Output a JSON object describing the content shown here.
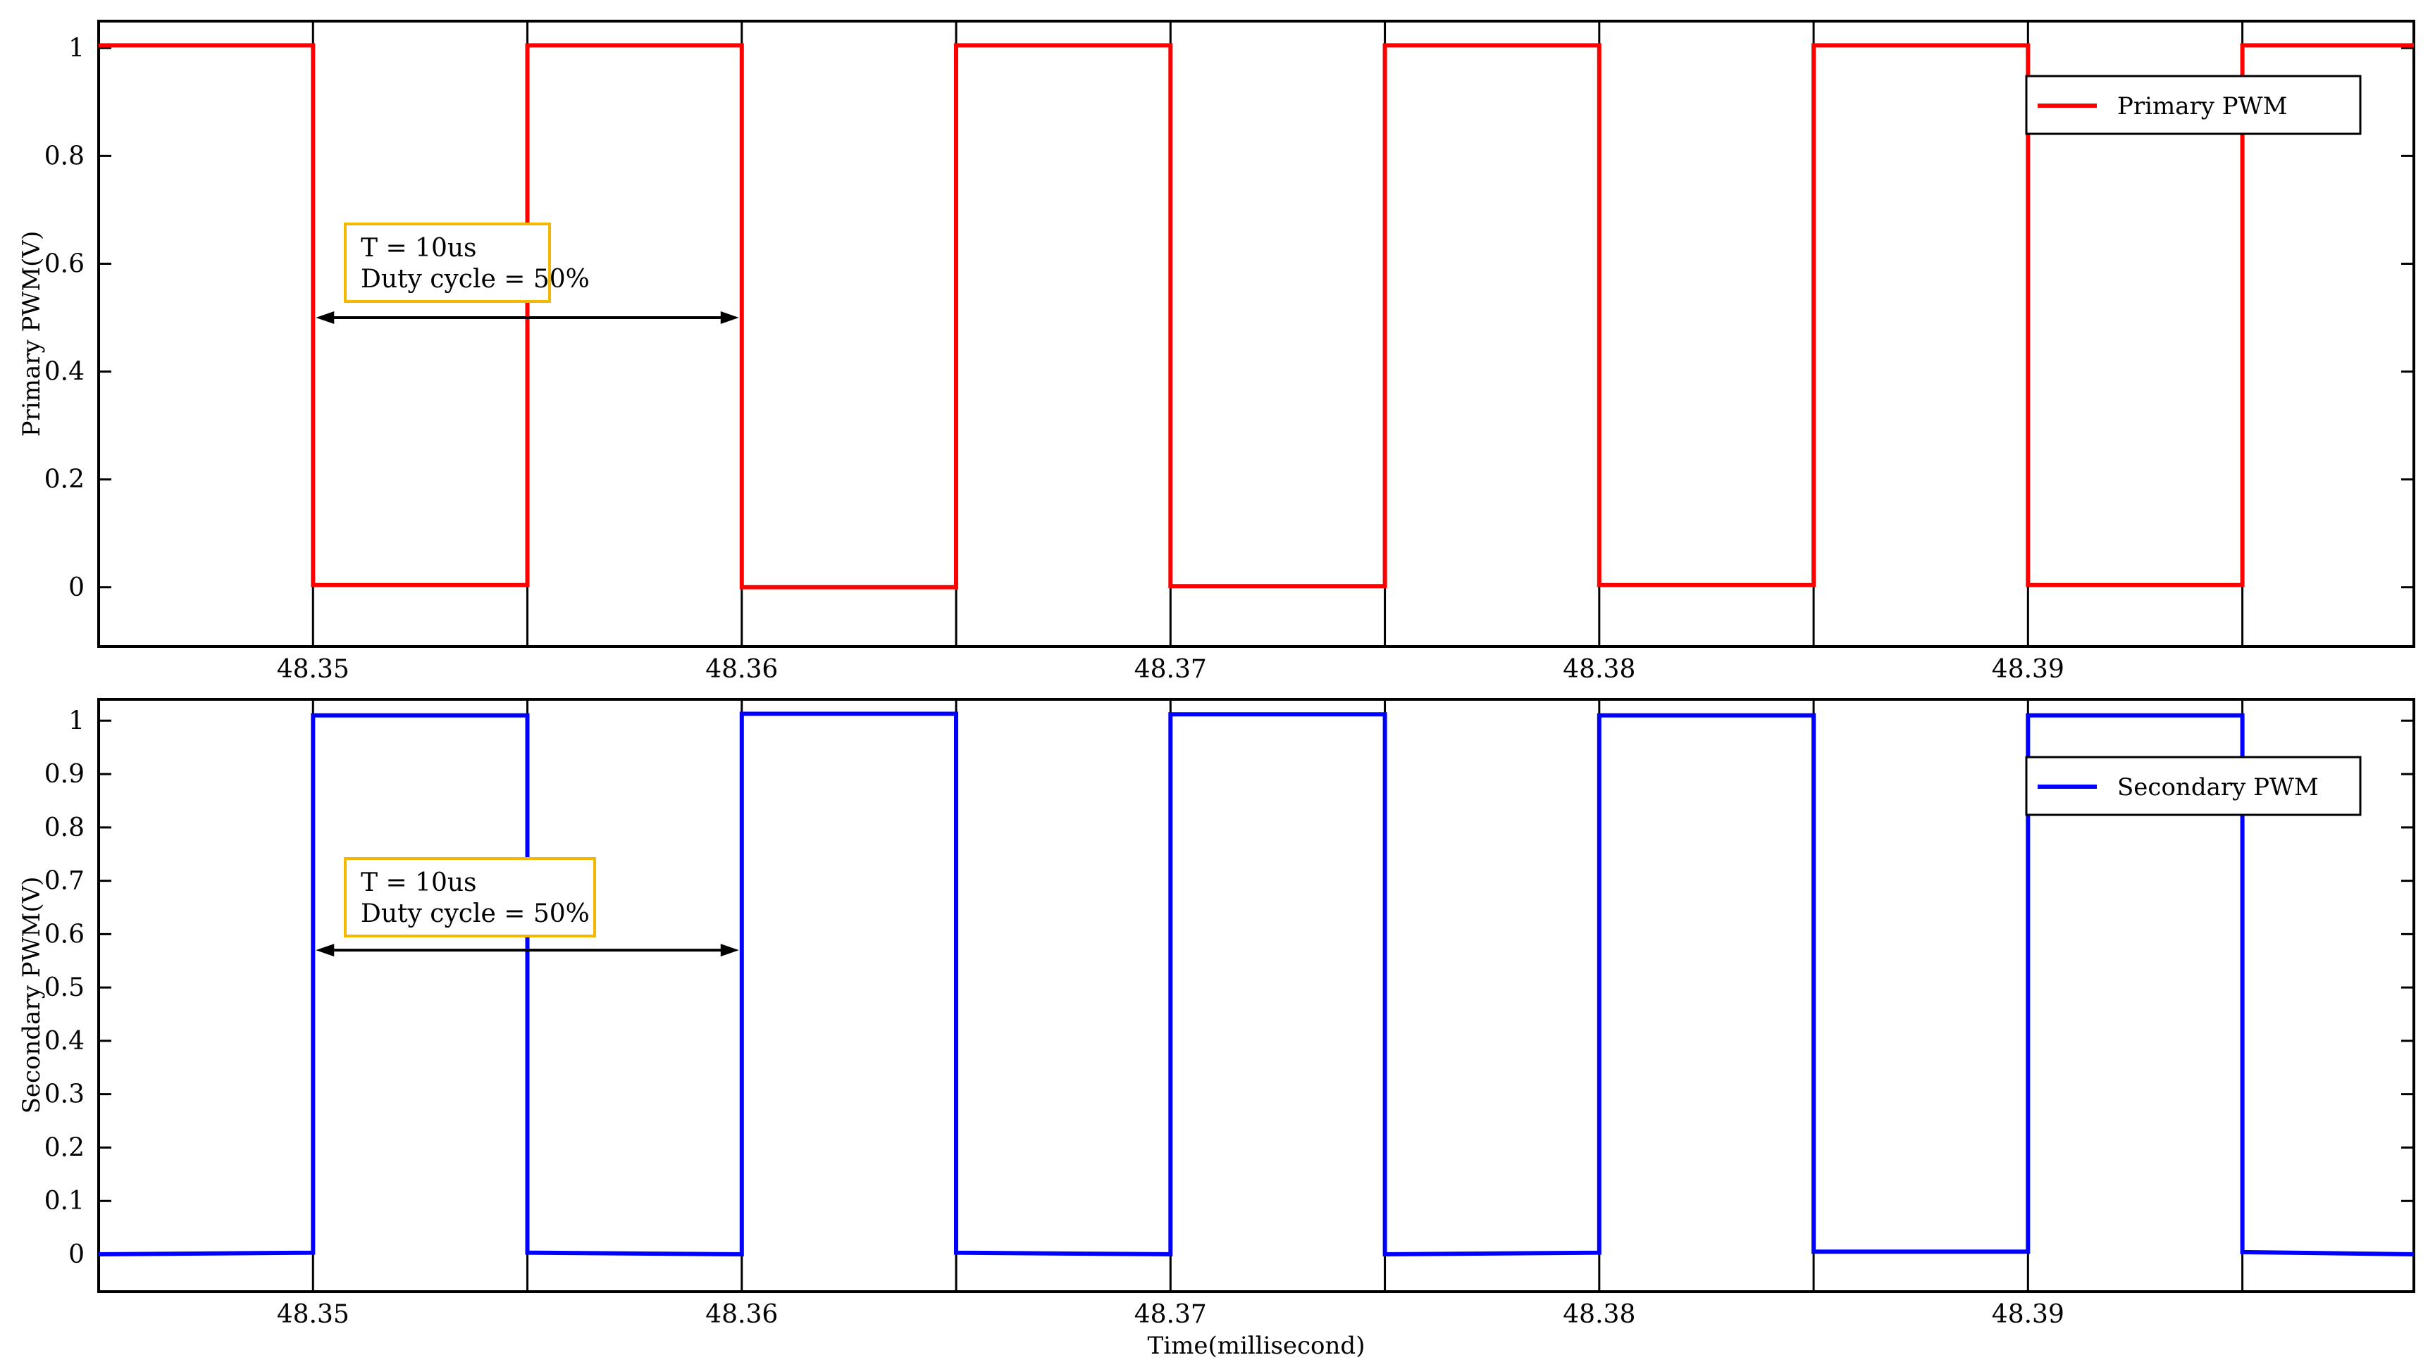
{
  "chart_data": [
    {
      "type": "line",
      "ylabel": "Primary PWM(V)",
      "xlabel": "",
      "xlim": [
        48.345,
        48.399
      ],
      "ylim": [
        -0.11,
        1.05
      ],
      "xticks": [
        48.35,
        48.36,
        48.37,
        48.38,
        48.39
      ],
      "xtick_labels": [
        "48.35",
        "48.36",
        "48.37",
        "48.38",
        "48.39"
      ],
      "yticks": [
        0,
        0.2,
        0.4,
        0.6,
        0.8,
        1
      ],
      "ytick_labels": [
        "0",
        "0.2",
        "0.4",
        "0.6",
        "0.8",
        "1"
      ],
      "grid": "vertical at x ticks",
      "legend_position": "top-right",
      "series": [
        {
          "name": "Primary PWM",
          "color": "#ff0000",
          "x": [
            48.345,
            48.35,
            48.35,
            48.355,
            48.355,
            48.36,
            48.36,
            48.365,
            48.365,
            48.37,
            48.37,
            48.375,
            48.375,
            48.38,
            48.38,
            48.385,
            48.385,
            48.39,
            48.39,
            48.395,
            48.395,
            48.399
          ],
          "y": [
            1.005,
            1.005,
            0.004,
            0.004,
            1.005,
            1.005,
            0.0,
            0.0,
            1.005,
            1.005,
            0.002,
            0.002,
            1.005,
            1.005,
            0.004,
            0.004,
            1.005,
            1.005,
            0.004,
            0.004,
            1.005,
            1.005
          ]
        }
      ],
      "annotation": {
        "lines": [
          "T = 10us",
          "Duty cycle = 50%"
        ],
        "arrow_x": [
          48.35,
          48.36
        ],
        "arrow_y": 0.5,
        "box_color": "#f5b800"
      }
    },
    {
      "type": "line",
      "ylabel": "Secondary PWM(V)",
      "xlabel": "Time(millisecond)",
      "xlim": [
        48.345,
        48.399
      ],
      "ylim": [
        -0.07,
        1.04
      ],
      "xticks": [
        48.35,
        48.36,
        48.37,
        48.38,
        48.39
      ],
      "xtick_labels": [
        "48.35",
        "48.36",
        "48.37",
        "48.38",
        "48.39"
      ],
      "yticks": [
        0,
        0.1,
        0.2,
        0.3,
        0.4,
        0.5,
        0.6,
        0.7,
        0.8,
        0.9,
        1
      ],
      "ytick_labels": [
        "0",
        "0.1",
        "0.2",
        "0.3",
        "0.4",
        "0.5",
        "0.6",
        "0.7",
        "0.8",
        "0.9",
        "1"
      ],
      "grid": "vertical at x ticks",
      "legend_position": "top-right",
      "series": [
        {
          "name": "Secondary PWM",
          "color": "#0000ff",
          "x": [
            48.345,
            48.35,
            48.35,
            48.355,
            48.355,
            48.36,
            48.36,
            48.365,
            48.365,
            48.37,
            48.37,
            48.375,
            48.375,
            48.38,
            48.38,
            48.385,
            48.385,
            48.39,
            48.39,
            48.395,
            48.395,
            48.399
          ],
          "y": [
            0.0,
            0.003,
            1.01,
            1.01,
            0.003,
            0.0,
            1.013,
            1.013,
            0.003,
            0.0,
            1.012,
            1.012,
            0.0,
            0.003,
            1.01,
            1.01,
            0.005,
            0.005,
            1.01,
            1.01,
            0.004,
            0.0
          ]
        }
      ],
      "annotation": {
        "lines": [
          "T = 10us",
          "Duty cycle = 50%"
        ],
        "arrow_x": [
          48.35,
          48.36
        ],
        "arrow_y": 0.57,
        "box_color": "#f5b800"
      }
    }
  ]
}
